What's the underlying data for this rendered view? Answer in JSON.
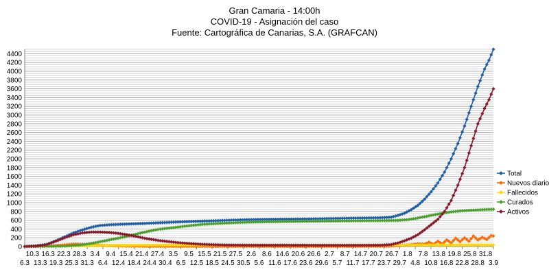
{
  "chart_data": {
    "type": "line",
    "title": [
      "Gran Camaria - 14:00h",
      "COVID-19 - Asignación del caso",
      "Fuente: Cartográfica de Canarias, S.A. (GRAFCAN)"
    ],
    "xlabel": "",
    "ylabel": "",
    "ylim": [
      0,
      4500
    ],
    "yticks": [
      0,
      200,
      400,
      600,
      800,
      1000,
      1200,
      1400,
      1600,
      1800,
      2000,
      2200,
      2400,
      2600,
      2800,
      3000,
      3200,
      3400,
      3600,
      3800,
      4000,
      4200,
      4400
    ],
    "grid": true,
    "legend_position": "right",
    "x_start": "6.3",
    "x_end": "3.9",
    "x_tick_labels_row1": [
      "10.3",
      "16.3",
      "22.3",
      "28.3",
      "3.4",
      "9.4",
      "15.4",
      "21.4",
      "27.4",
      "3.5",
      "9.5",
      "15.5",
      "21.5",
      "27.5",
      "2.6",
      "8.6",
      "14.6",
      "20.6",
      "26.6",
      "2.7",
      "8.7",
      "14.7",
      "20.7",
      "26.7",
      "1.8",
      "7.8",
      "13.8",
      "19.8",
      "25.8",
      "31.8"
    ],
    "x_tick_labels_row2": [
      "6.3",
      "13.3",
      "19.3",
      "25.3",
      "31.3",
      "6.4",
      "12.4",
      "18.4",
      "24.4",
      "30.4",
      "6.5",
      "12.5",
      "18.5",
      "24.5",
      "30.5",
      "5.6",
      "11.6",
      "17.6",
      "23.6",
      "29.6",
      "5.7",
      "11.7",
      "17.7",
      "23.7",
      "29.7",
      "4.8",
      "10.8",
      "16.8",
      "22.8",
      "28.8",
      "3.9"
    ],
    "series": [
      {
        "name": "Total",
        "color": "#1f5fa8",
        "marker": "diamond",
        "points": [
          [
            0,
            0
          ],
          [
            5,
            15
          ],
          [
            10,
            50
          ],
          [
            14,
            130
          ],
          [
            18,
            220
          ],
          [
            22,
            310
          ],
          [
            26,
            380
          ],
          [
            30,
            440
          ],
          [
            34,
            480
          ],
          [
            38,
            495
          ],
          [
            42,
            505
          ],
          [
            48,
            515
          ],
          [
            55,
            530
          ],
          [
            62,
            545
          ],
          [
            70,
            560
          ],
          [
            80,
            580
          ],
          [
            90,
            595
          ],
          [
            100,
            610
          ],
          [
            110,
            620
          ],
          [
            120,
            625
          ],
          [
            130,
            632
          ],
          [
            140,
            640
          ],
          [
            150,
            648
          ],
          [
            160,
            656
          ],
          [
            165,
            670
          ],
          [
            168,
            710
          ],
          [
            171,
            760
          ],
          [
            174,
            840
          ],
          [
            177,
            940
          ],
          [
            180,
            1080
          ],
          [
            183,
            1250
          ],
          [
            186,
            1450
          ],
          [
            189,
            1700
          ],
          [
            192,
            2000
          ],
          [
            195,
            2350
          ],
          [
            198,
            2750
          ],
          [
            201,
            3200
          ],
          [
            204,
            3650
          ],
          [
            207,
            4050
          ],
          [
            209,
            4250
          ],
          [
            211,
            4500
          ]
        ]
      },
      {
        "name": "Nuevos diario",
        "color": "#ff6a00",
        "marker": "diamond",
        "points": [
          [
            0,
            0
          ],
          [
            8,
            5
          ],
          [
            14,
            20
          ],
          [
            18,
            40
          ],
          [
            22,
            55
          ],
          [
            26,
            50
          ],
          [
            30,
            40
          ],
          [
            34,
            30
          ],
          [
            38,
            20
          ],
          [
            45,
            12
          ],
          [
            55,
            6
          ],
          [
            70,
            4
          ],
          [
            90,
            3
          ],
          [
            110,
            3
          ],
          [
            130,
            2
          ],
          [
            150,
            3
          ],
          [
            165,
            10
          ],
          [
            168,
            20
          ],
          [
            171,
            35
          ],
          [
            174,
            45
          ],
          [
            177,
            60
          ],
          [
            180,
            55
          ],
          [
            182,
            100
          ],
          [
            184,
            50
          ],
          [
            186,
            120
          ],
          [
            188,
            60
          ],
          [
            190,
            150
          ],
          [
            192,
            80
          ],
          [
            194,
            190
          ],
          [
            196,
            110
          ],
          [
            198,
            200
          ],
          [
            200,
            120
          ],
          [
            202,
            240
          ],
          [
            204,
            150
          ],
          [
            206,
            210
          ],
          [
            208,
            160
          ],
          [
            210,
            250
          ],
          [
            211,
            240
          ]
        ]
      },
      {
        "name": "Fallecidos",
        "color": "#ffd700",
        "marker": "diamond",
        "points": [
          [
            0,
            0
          ],
          [
            14,
            5
          ],
          [
            22,
            15
          ],
          [
            30,
            22
          ],
          [
            40,
            27
          ],
          [
            60,
            30
          ],
          [
            100,
            32
          ],
          [
            140,
            33
          ],
          [
            170,
            34
          ],
          [
            190,
            36
          ],
          [
            211,
            38
          ]
        ]
      },
      {
        "name": "Curados",
        "color": "#4aa02c",
        "marker": "diamond",
        "points": [
          [
            0,
            0
          ],
          [
            10,
            3
          ],
          [
            18,
            10
          ],
          [
            25,
            35
          ],
          [
            30,
            70
          ],
          [
            35,
            120
          ],
          [
            40,
            170
          ],
          [
            45,
            220
          ],
          [
            50,
            280
          ],
          [
            55,
            340
          ],
          [
            60,
            390
          ],
          [
            65,
            420
          ],
          [
            70,
            450
          ],
          [
            75,
            480
          ],
          [
            80,
            505
          ],
          [
            85,
            520
          ],
          [
            90,
            535
          ],
          [
            95,
            545
          ],
          [
            100,
            555
          ],
          [
            110,
            565
          ],
          [
            120,
            572
          ],
          [
            130,
            578
          ],
          [
            140,
            583
          ],
          [
            150,
            588
          ],
          [
            160,
            592
          ],
          [
            168,
            596
          ],
          [
            172,
            610
          ],
          [
            176,
            640
          ],
          [
            180,
            680
          ],
          [
            184,
            720
          ],
          [
            188,
            760
          ],
          [
            192,
            790
          ],
          [
            196,
            810
          ],
          [
            200,
            825
          ],
          [
            204,
            835
          ],
          [
            208,
            845
          ],
          [
            211,
            850
          ]
        ]
      },
      {
        "name": "Activos",
        "color": "#8b1a2b",
        "marker": "diamond",
        "points": [
          [
            0,
            0
          ],
          [
            5,
            10
          ],
          [
            10,
            45
          ],
          [
            14,
            120
          ],
          [
            18,
            200
          ],
          [
            22,
            270
          ],
          [
            26,
            310
          ],
          [
            30,
            330
          ],
          [
            34,
            330
          ],
          [
            38,
            320
          ],
          [
            42,
            300
          ],
          [
            46,
            270
          ],
          [
            50,
            230
          ],
          [
            55,
            180
          ],
          [
            60,
            140
          ],
          [
            65,
            110
          ],
          [
            70,
            85
          ],
          [
            75,
            65
          ],
          [
            80,
            50
          ],
          [
            90,
            35
          ],
          [
            100,
            30
          ],
          [
            110,
            30
          ],
          [
            120,
            30
          ],
          [
            130,
            28
          ],
          [
            140,
            27
          ],
          [
            150,
            28
          ],
          [
            160,
            30
          ],
          [
            165,
            45
          ],
          [
            168,
            80
          ],
          [
            171,
            130
          ],
          [
            174,
            190
          ],
          [
            177,
            270
          ],
          [
            180,
            380
          ],
          [
            183,
            500
          ],
          [
            186,
            620
          ],
          [
            189,
            800
          ],
          [
            192,
            1050
          ],
          [
            195,
            1400
          ],
          [
            198,
            1800
          ],
          [
            201,
            2300
          ],
          [
            204,
            2800
          ],
          [
            207,
            3150
          ],
          [
            209,
            3350
          ],
          [
            211,
            3600
          ]
        ]
      }
    ]
  }
}
